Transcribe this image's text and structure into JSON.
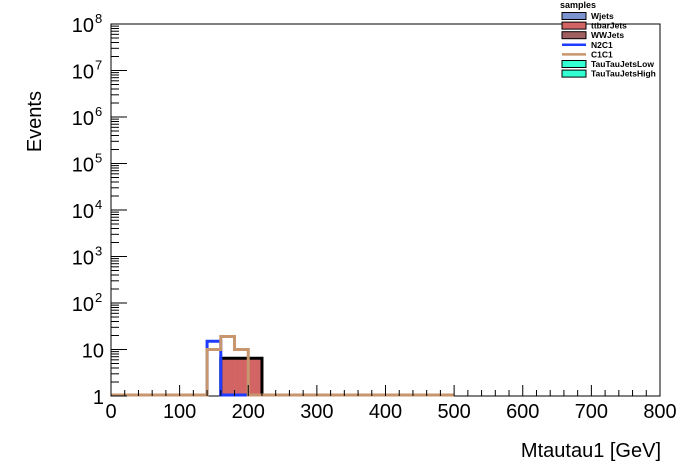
{
  "chart_data": {
    "type": "bar",
    "title": "",
    "xlabel": "Mtautau1 [GeV]",
    "ylabel": "Events",
    "xlim": [
      0,
      800
    ],
    "ylim": [
      1,
      100000000
    ],
    "yscale": "log",
    "bin_width": 20,
    "x_ticks": [
      "0",
      "100",
      "200",
      "300",
      "400",
      "500",
      "600",
      "700",
      "800"
    ],
    "y_ticks": [
      {
        "value": 1,
        "label": "1",
        "exp": ""
      },
      {
        "value": 10,
        "label": "10",
        "exp": ""
      },
      {
        "value": 100,
        "label": "10",
        "exp": "2"
      },
      {
        "value": 1000,
        "label": "10",
        "exp": "3"
      },
      {
        "value": 10000,
        "label": "10",
        "exp": "4"
      },
      {
        "value": 100000,
        "label": "10",
        "exp": "5"
      },
      {
        "value": 1000000,
        "label": "10",
        "exp": "6"
      },
      {
        "value": 10000000,
        "label": "10",
        "exp": "7"
      },
      {
        "value": 100000000,
        "label": "10",
        "exp": "8"
      }
    ],
    "legend": {
      "title": "samples",
      "placement": "top-right",
      "entries": [
        {
          "name": "Wjets",
          "style": "box",
          "color": "#7b93cf"
        },
        {
          "name": "ttbarJets",
          "style": "box",
          "color": "#d26464"
        },
        {
          "name": "WWJets",
          "style": "box",
          "color": "#a06060"
        },
        {
          "name": "N2C1",
          "style": "line",
          "color": "#1e3cff"
        },
        {
          "name": "C1C1",
          "style": "line",
          "color": "#c8966e"
        },
        {
          "name": "TauTauJetsLow",
          "style": "box",
          "color": "#32ffd2"
        },
        {
          "name": "TauTauJetsHigh",
          "style": "box",
          "color": "#32ffd2"
        }
      ]
    },
    "stacked": {
      "name": "ttbarJets",
      "color": "#d26464",
      "outline": "#000000",
      "bins": [
        [
          160,
          180,
          6.5
        ],
        [
          180,
          200,
          6.5
        ],
        [
          200,
          220,
          6.5
        ]
      ]
    },
    "series": [
      {
        "name": "N2C1",
        "color": "#1e3cff",
        "points": [
          [
            0,
            1
          ],
          [
            140,
            1
          ],
          [
            140,
            15
          ],
          [
            160,
            15
          ],
          [
            160,
            1
          ],
          [
            200,
            1
          ]
        ]
      },
      {
        "name": "C1C1",
        "color": "#c8966e",
        "points": [
          [
            0,
            1
          ],
          [
            140,
            1
          ],
          [
            140,
            10
          ],
          [
            160,
            10
          ],
          [
            160,
            19
          ],
          [
            180,
            19
          ],
          [
            180,
            10
          ],
          [
            200,
            10
          ],
          [
            200,
            1
          ],
          [
            500,
            1
          ]
        ]
      }
    ]
  }
}
